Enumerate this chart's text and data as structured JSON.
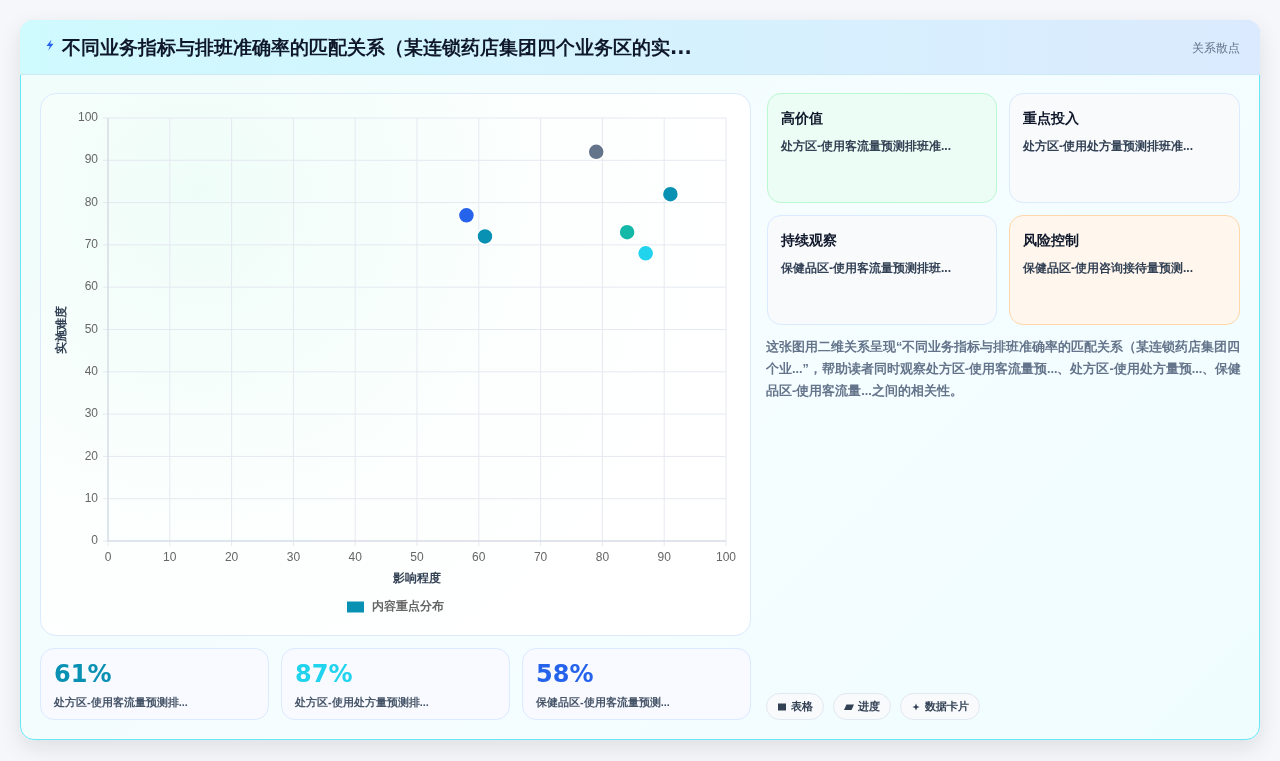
{
  "chart_data": [
    {
      "type": "other",
      "title": "不同业务指标与排班准确率的匹配关系（某连锁药店集团四个业务区的实...",
      "subtitle": "关系散点"
    },
    {
      "type": "scatter",
      "xlabel": "影响程度",
      "ylabel": "实施难度",
      "xlim": [
        0,
        100
      ],
      "ylim": [
        0,
        100
      ],
      "xticks": [
        0,
        10,
        20,
        30,
        40,
        50,
        60,
        70,
        80,
        90,
        100
      ],
      "yticks": [
        0,
        10,
        20,
        30,
        40,
        50,
        60,
        70,
        80,
        90,
        100
      ],
      "grid": true,
      "legend": "bottom",
      "marker": "circle",
      "series": [
        {
          "name": "内容重点分布",
          "color": "#0891b2",
          "colors": [
            "#2563eb",
            "#0891b2",
            "#64748b",
            "#14b8a6",
            "#22d3ee",
            "#0891b2"
          ],
          "x": [
            58,
            61,
            79,
            84,
            87,
            91
          ],
          "values": [
            77,
            72,
            92,
            73,
            68,
            82
          ]
        }
      ]
    },
    {
      "type": "other",
      "title": "高价值",
      "annotations": [
        "处方区-使用客流量预测排班准..."
      ]
    },
    {
      "type": "other",
      "title": "重点投入",
      "annotations": [
        "处方区-使用处方量预测排班准..."
      ]
    },
    {
      "type": "other",
      "title": "持续观察",
      "annotations": [
        "保健品区-使用客流量预测排班..."
      ]
    },
    {
      "type": "other",
      "title": "风险控制",
      "annotations": [
        "保健品区-使用咨询接待量预测..."
      ]
    },
    {
      "type": "other",
      "annotations": [
        "这张图用二维关系呈现“不同业务指标与排班准确率的匹配关系（某连锁药店集团四个业...”，帮助读者同时观察处方区-使用客流量预...、处方区-使用处方量预...、保健品区-使用客流量...之间的相关性。"
      ]
    },
    {
      "type": "other",
      "title": "61%",
      "color": "#0891b2",
      "annotations": [
        "处方区-使用客流量预测排..."
      ]
    },
    {
      "type": "other",
      "title": "87%",
      "color": "#22d3ee",
      "annotations": [
        "处方区-使用处方量预测排..."
      ]
    },
    {
      "type": "other",
      "title": "58%",
      "color": "#2563eb",
      "annotations": [
        "保健品区-使用客流量预测..."
      ]
    },
    {
      "type": "other",
      "annotations": [
        "表格",
        "进度",
        "数据卡片"
      ]
    }
  ]
}
